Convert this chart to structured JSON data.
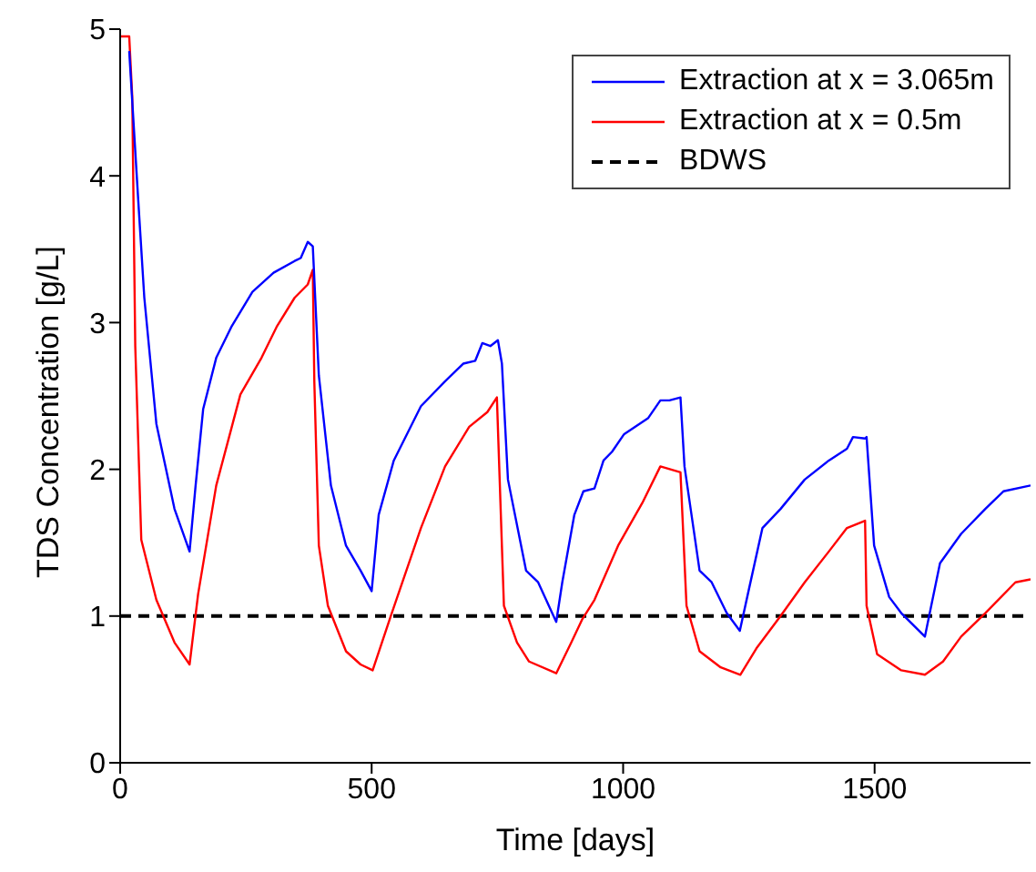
{
  "chart_data": {
    "type": "line",
    "xlabel": "Time [days]",
    "ylabel": "TDS Concentration [g/L]",
    "xlim": [
      0,
      1810
    ],
    "xticks": [
      0,
      500,
      1000,
      1500
    ],
    "ylim": [
      0,
      5
    ],
    "yticks": [
      0,
      1,
      2,
      3,
      4,
      5
    ],
    "grid": false,
    "legend": "top right",
    "line_style": "solid",
    "marker": "none",
    "series": [
      {
        "name": "Extraction at x = 3.065m",
        "color": "#0000ff",
        "x": [
          18,
          36,
          48,
          72,
          108,
          138,
          150,
          165,
          191,
          221,
          263,
          305,
          347,
          359,
          373,
          383,
          395,
          419,
          449,
          478,
          500,
          514,
          544,
          598,
          646,
          682,
          706,
          720,
          736,
          751,
          759,
          771,
          807,
          831,
          867,
          879,
          903,
          921,
          943,
          961,
          978,
          1002,
          1050,
          1074,
          1092,
          1114,
          1122,
          1152,
          1176,
          1206,
          1232,
          1248,
          1277,
          1313,
          1361,
          1409,
          1445,
          1457,
          1481,
          1484,
          1499,
          1529,
          1553,
          1600,
          1630,
          1672,
          1720,
          1756,
          1810
        ],
        "values": [
          4.85,
          3.83,
          3.17,
          2.31,
          1.73,
          1.44,
          1.89,
          2.41,
          2.76,
          2.97,
          3.21,
          3.34,
          3.42,
          3.44,
          3.55,
          3.52,
          2.64,
          1.89,
          1.48,
          1.31,
          1.17,
          1.69,
          2.06,
          2.43,
          2.6,
          2.72,
          2.74,
          2.86,
          2.84,
          2.88,
          2.72,
          1.93,
          1.31,
          1.23,
          0.96,
          1.23,
          1.69,
          1.85,
          1.87,
          2.06,
          2.12,
          2.24,
          2.35,
          2.47,
          2.47,
          2.49,
          2.02,
          1.31,
          1.23,
          1.02,
          0.9,
          1.15,
          1.6,
          1.73,
          1.93,
          2.06,
          2.14,
          2.22,
          2.21,
          2.22,
          1.48,
          1.13,
          1.02,
          0.86,
          1.36,
          1.56,
          1.73,
          1.85,
          1.89
        ]
      },
      {
        "name": "Extraction at x = 0.5m",
        "color": "#ff0000",
        "x": [
          0,
          18,
          24,
          30,
          42,
          72,
          108,
          138,
          155,
          191,
          239,
          281,
          311,
          347,
          373,
          383,
          386,
          395,
          413,
          449,
          478,
          502,
          538,
          598,
          646,
          694,
          730,
          749,
          763,
          789,
          813,
          867,
          897,
          919,
          943,
          990,
          1038,
          1074,
          1114,
          1126,
          1152,
          1194,
          1233,
          1265,
          1313,
          1361,
          1409,
          1445,
          1481,
          1484,
          1505,
          1553,
          1600,
          1636,
          1672,
          1720,
          1780,
          1810
        ],
        "values": [
          4.95,
          4.95,
          4.54,
          2.84,
          1.52,
          1.11,
          0.82,
          0.67,
          1.15,
          1.89,
          2.51,
          2.76,
          2.97,
          3.17,
          3.26,
          3.36,
          2.6,
          1.48,
          1.07,
          0.76,
          0.67,
          0.63,
          1.0,
          1.6,
          2.02,
          2.29,
          2.39,
          2.49,
          1.07,
          0.82,
          0.69,
          0.61,
          0.82,
          0.98,
          1.11,
          1.48,
          1.77,
          2.02,
          1.98,
          1.07,
          0.76,
          0.65,
          0.6,
          0.78,
          1.0,
          1.23,
          1.44,
          1.6,
          1.65,
          1.07,
          0.74,
          0.63,
          0.6,
          0.69,
          0.86,
          1.02,
          1.23,
          1.25
        ]
      }
    ],
    "ref_lines": [
      {
        "axis": "y",
        "value": 1,
        "label": "BDWS",
        "color": "#000000",
        "line_style": "dashed"
      }
    ]
  }
}
